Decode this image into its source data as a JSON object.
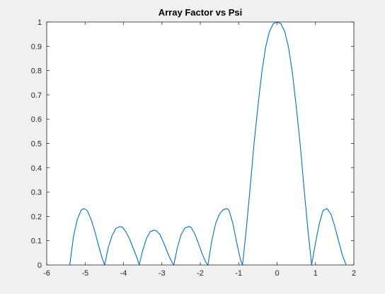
{
  "chart_data": {
    "type": "line",
    "title": "Array Factor vs Psi",
    "xlabel": "",
    "ylabel": "",
    "xlim": [
      -6,
      2
    ],
    "ylim": [
      0,
      1
    ],
    "xticks": [
      -6,
      -5,
      -4,
      -3,
      -2,
      -1,
      0,
      1,
      2
    ],
    "yticks": [
      0,
      0.1,
      0.2,
      0.3,
      0.4,
      0.5,
      0.6,
      0.7,
      0.8,
      0.9,
      1
    ],
    "xtick_labels": [
      "-6",
      "-5",
      "-4",
      "-3",
      "-2",
      "-1",
      "0",
      "1",
      "2"
    ],
    "ytick_labels": [
      "0",
      "0.1",
      "0.2",
      "0.3",
      "0.4",
      "0.5",
      "0.6",
      "0.7",
      "0.8",
      "0.9",
      "1"
    ],
    "grid": false,
    "legend": "none",
    "series": [
      {
        "color": "#0072bd",
        "x": [
          -5.4,
          -5.3,
          -5.2,
          -5.1,
          -5.03,
          -4.95,
          -4.85,
          -4.75,
          -4.65,
          -4.55,
          -4.49,
          -4.4,
          -4.3,
          -4.2,
          -4.1,
          -4.03,
          -3.95,
          -3.85,
          -3.75,
          -3.65,
          -3.59,
          -3.5,
          -3.4,
          -3.3,
          -3.2,
          -3.14,
          -3.05,
          -2.95,
          -2.85,
          -2.75,
          -2.69,
          -2.6,
          -2.5,
          -2.4,
          -2.3,
          -2.24,
          -2.15,
          -2.05,
          -1.95,
          -1.85,
          -1.8,
          -1.7,
          -1.6,
          -1.5,
          -1.4,
          -1.3,
          -1.25,
          -1.15,
          -1.05,
          -0.95,
          -0.9,
          -0.8,
          -0.7,
          -0.6,
          -0.5,
          -0.4,
          -0.3,
          -0.2,
          -0.1,
          0,
          0.1,
          0.2,
          0.3,
          0.4,
          0.5,
          0.6,
          0.7,
          0.8,
          0.9,
          1.0,
          1.1,
          1.2,
          1.3,
          1.4,
          1.5,
          1.6,
          1.7,
          1.8
        ],
        "y": [
          0,
          0.12,
          0.19,
          0.226,
          0.232,
          0.225,
          0.19,
          0.14,
          0.08,
          0.025,
          0,
          0.07,
          0.12,
          0.15,
          0.158,
          0.156,
          0.14,
          0.11,
          0.07,
          0.03,
          0,
          0.06,
          0.11,
          0.138,
          0.143,
          0.14,
          0.125,
          0.09,
          0.05,
          0.015,
          0,
          0.07,
          0.125,
          0.152,
          0.158,
          0.155,
          0.13,
          0.09,
          0.045,
          0.01,
          0,
          0.1,
          0.17,
          0.21,
          0.228,
          0.232,
          0.225,
          0.17,
          0.09,
          0.02,
          0,
          0.15,
          0.32,
          0.5,
          0.65,
          0.79,
          0.895,
          0.96,
          0.993,
          1.0,
          0.993,
          0.96,
          0.895,
          0.79,
          0.65,
          0.5,
          0.32,
          0.15,
          0,
          0.09,
          0.17,
          0.225,
          0.232,
          0.21,
          0.16,
          0.1,
          0.04,
          0
        ]
      }
    ]
  }
}
